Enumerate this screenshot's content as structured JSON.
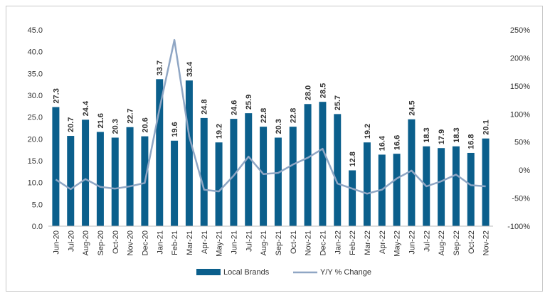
{
  "chart_data": {
    "type": "bar",
    "categories": [
      "Jun-20",
      "Jul-20",
      "Aug-20",
      "Sep-20",
      "Oct-20",
      "Nov-20",
      "Dec-20",
      "Jan-21",
      "Feb-21",
      "Mar-21",
      "Apr-21",
      "May-21",
      "Jun-21",
      "Jul-21",
      "Aug-21",
      "Sep-21",
      "Oct-21",
      "Nov-21",
      "Dec-21",
      "Jan-22",
      "Feb-22",
      "Mar-22",
      "Apr-22",
      "May-22",
      "Jun-22",
      "Jul-22",
      "Aug-22",
      "Sep-22",
      "Oct-22",
      "Nov-22"
    ],
    "series": [
      {
        "name": "Local Brands",
        "type": "bar",
        "axis": "left",
        "color": "#0b5f8c",
        "values": [
          27.3,
          20.7,
          24.4,
          21.6,
          20.3,
          22.7,
          20.6,
          33.7,
          19.6,
          33.4,
          24.8,
          19.2,
          24.6,
          25.9,
          22.8,
          20.3,
          22.8,
          28.0,
          28.5,
          25.7,
          12.8,
          19.2,
          16.4,
          16.6,
          24.5,
          18.3,
          17.9,
          18.3,
          16.8,
          20.1
        ],
        "labels": [
          "27.3",
          "20.7",
          "24.4",
          "21.6",
          "20.3",
          "22.7",
          "20.6",
          "33.7",
          "19.6",
          "33.4",
          "24.8",
          "19.2",
          "24.6",
          "25.9",
          "22.8",
          "20.3",
          "22.8",
          "28.0",
          "28.5",
          "25.7",
          "12.8",
          "19.2",
          "16.4",
          "16.6",
          "24.5",
          "18.3",
          "17.9",
          "18.3",
          "16.8",
          "20.1"
        ]
      },
      {
        "name": "Y/Y % Change",
        "type": "line",
        "axis": "right",
        "color": "#8fa6c4",
        "values": [
          -17,
          -34,
          -16,
          -30,
          -33,
          -29,
          -23,
          110,
          232,
          60,
          -35,
          -38,
          -10,
          24,
          -7,
          -5,
          10,
          22,
          38,
          -24,
          -33,
          -42,
          -35,
          -15,
          -1,
          -29,
          -20,
          -8,
          -27,
          -29
        ]
      }
    ],
    "y_left": {
      "ylim": [
        0,
        45
      ],
      "ticks": [
        "0.0",
        "5.0",
        "10.0",
        "15.0",
        "20.0",
        "25.0",
        "30.0",
        "35.0",
        "40.0",
        "45.0"
      ]
    },
    "y_right": {
      "ylim": [
        -100,
        250
      ],
      "ticks": [
        "-100%",
        "-50%",
        "0%",
        "50%",
        "100%",
        "150%",
        "200%",
        "250%"
      ]
    },
    "title": "",
    "xlabel": "",
    "ylabel": "",
    "grid": false,
    "legend": "bottom"
  }
}
